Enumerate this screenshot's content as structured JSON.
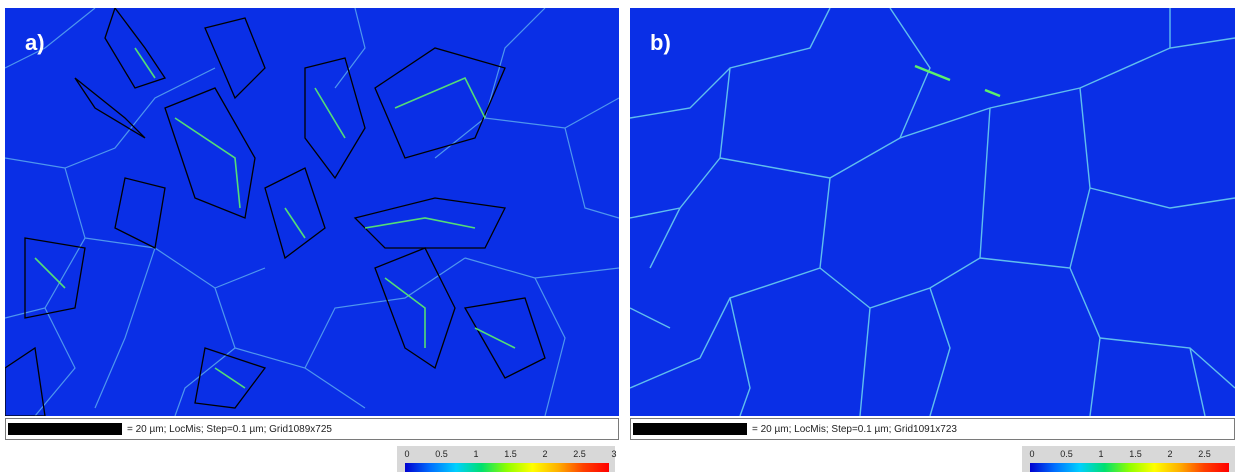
{
  "panels": [
    {
      "label": "a)",
      "caption": "= 20 µm; LocMis; Step=0.1 µm; Grid1089x725",
      "legend_ticks": [
        "0",
        "0.5",
        "1",
        "1.5",
        "2",
        "2.5",
        "3"
      ]
    },
    {
      "label": "b)",
      "caption": "= 20 µm; LocMis; Step=0.1 µm; Grid1091x723",
      "legend_ticks": [
        "0",
        "0.5",
        "1",
        "1.5",
        "2",
        "2.5"
      ]
    }
  ],
  "colors": {
    "matrix_blue": "#0a2fe6",
    "boundary_cyan": "#5fd0f0",
    "high_misorientation_green": "#5cf06a",
    "phase_boundary_black": "#000000"
  }
}
